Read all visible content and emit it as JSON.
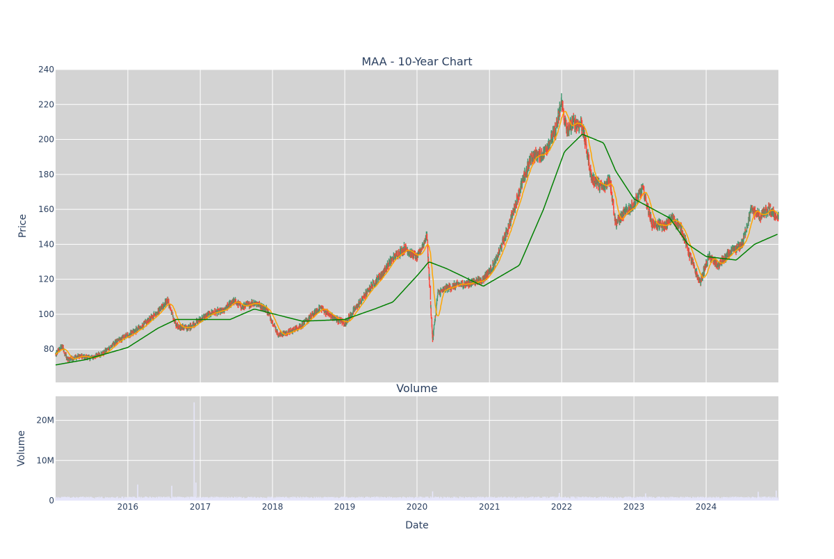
{
  "chart_data": [
    {
      "type": "candlestick",
      "title": "MAA - 10-Year Chart",
      "ylabel": "Price",
      "ylim": [
        61,
        240
      ],
      "yticks": [
        80,
        100,
        120,
        140,
        160,
        180,
        200,
        220,
        240
      ],
      "grid": true,
      "plot_bgcolor": "#d3d3d3",
      "colors": {
        "up": "#3d9970",
        "down": "#ff4136",
        "ma_short": "#ffa500",
        "ma_long": "#008000"
      },
      "x_range": [
        "2015-01-01",
        "2024-12-31"
      ],
      "anchors": {
        "dates": [
          "2015-01-02",
          "2015-02-01",
          "2015-03-01",
          "2015-05-01",
          "2015-07-01",
          "2015-09-01",
          "2015-11-01",
          "2016-01-01",
          "2016-03-01",
          "2016-05-01",
          "2016-07-20",
          "2016-09-01",
          "2016-11-01",
          "2017-01-01",
          "2017-03-01",
          "2017-05-01",
          "2017-06-15",
          "2017-08-01",
          "2017-10-01",
          "2017-12-01",
          "2018-02-01",
          "2018-04-01",
          "2018-06-01",
          "2018-09-01",
          "2018-11-01",
          "2019-01-01",
          "2019-03-01",
          "2019-05-01",
          "2019-07-01",
          "2019-09-01",
          "2019-11-01",
          "2020-01-01",
          "2020-02-20",
          "2020-03-20",
          "2020-04-15",
          "2020-06-01",
          "2020-08-01",
          "2020-10-01",
          "2020-12-01",
          "2021-02-01",
          "2021-04-01",
          "2021-06-01",
          "2021-08-01",
          "2021-10-01",
          "2021-12-01",
          "2022-01-01",
          "2022-01-25",
          "2022-03-01",
          "2022-04-15",
          "2022-06-01",
          "2022-08-01",
          "2022-09-01",
          "2022-10-01",
          "2022-11-15",
          "2023-01-01",
          "2023-02-15",
          "2023-04-01",
          "2023-06-01",
          "2023-07-15",
          "2023-09-01",
          "2023-10-20",
          "2023-12-01",
          "2024-01-15",
          "2024-03-01",
          "2024-05-01",
          "2024-07-01",
          "2024-08-15",
          "2024-10-01",
          "2024-11-15",
          "2024-12-31"
        ],
        "close": [
          77,
          82,
          74,
          76,
          75,
          78,
          84,
          88,
          92,
          98,
          108,
          93,
          92,
          97,
          101,
          102,
          108,
          104,
          107,
          103,
          88,
          90,
          94,
          104,
          98,
          95,
          104,
          114,
          122,
          132,
          138,
          132,
          145,
          85,
          112,
          115,
          117,
          118,
          120,
          130,
          148,
          170,
          190,
          192,
          205,
          222,
          205,
          210,
          208,
          178,
          172,
          178,
          152,
          158,
          163,
          172,
          152,
          150,
          155,
          148,
          130,
          118,
          133,
          128,
          135,
          140,
          160,
          156,
          160,
          155
        ]
      },
      "ma_short": {
        "name": "",
        "lag_days": 40
      },
      "ma_long": {
        "name": "",
        "dates": [
          "2015-01-01",
          "2015-06-01",
          "2016-01-01",
          "2016-06-01",
          "2016-09-01",
          "2017-06-01",
          "2017-10-01",
          "2018-06-01",
          "2019-01-01",
          "2019-06-01",
          "2019-09-01",
          "2020-01-01",
          "2020-03-01",
          "2020-06-01",
          "2020-12-01",
          "2021-06-01",
          "2021-10-01",
          "2022-01-15",
          "2022-04-15",
          "2022-08-01",
          "2022-10-01",
          "2023-01-01",
          "2023-07-01",
          "2023-10-01",
          "2024-01-01",
          "2024-06-01",
          "2024-09-01",
          "2024-12-31"
        ],
        "values": [
          71,
          74,
          81,
          92,
          97,
          97,
          103,
          96,
          97,
          103,
          107,
          122,
          130,
          126,
          116,
          128,
          160,
          193,
          203,
          198,
          182,
          166,
          155,
          140,
          133,
          131,
          140,
          146
        ]
      }
    },
    {
      "type": "bar",
      "title": "Volume",
      "xlabel": "Date",
      "ylabel": "Volume",
      "ylim": [
        0,
        26000000
      ],
      "yticks": [
        0,
        10000000,
        20000000
      ],
      "ytick_labels": [
        "0",
        "10M",
        "20M"
      ],
      "xticks": [
        "2016",
        "2017",
        "2018",
        "2019",
        "2020",
        "2021",
        "2022",
        "2023",
        "2024"
      ],
      "grid": true,
      "plot_bgcolor": "#d3d3d3",
      "bar_color": "#e6e6fa",
      "baseline_volume": 700000,
      "spikes": [
        {
          "date": "2016-02-20",
          "value": 4000000
        },
        {
          "date": "2016-08-10",
          "value": 3700000
        },
        {
          "date": "2016-12-01",
          "value": 24500000
        },
        {
          "date": "2016-12-10",
          "value": 4500000
        },
        {
          "date": "2020-03-20",
          "value": 2300000
        },
        {
          "date": "2021-12-20",
          "value": 1900000
        },
        {
          "date": "2023-03-01",
          "value": 1800000
        },
        {
          "date": "2024-09-20",
          "value": 2200000
        },
        {
          "date": "2024-12-20",
          "value": 2500000
        }
      ]
    }
  ]
}
